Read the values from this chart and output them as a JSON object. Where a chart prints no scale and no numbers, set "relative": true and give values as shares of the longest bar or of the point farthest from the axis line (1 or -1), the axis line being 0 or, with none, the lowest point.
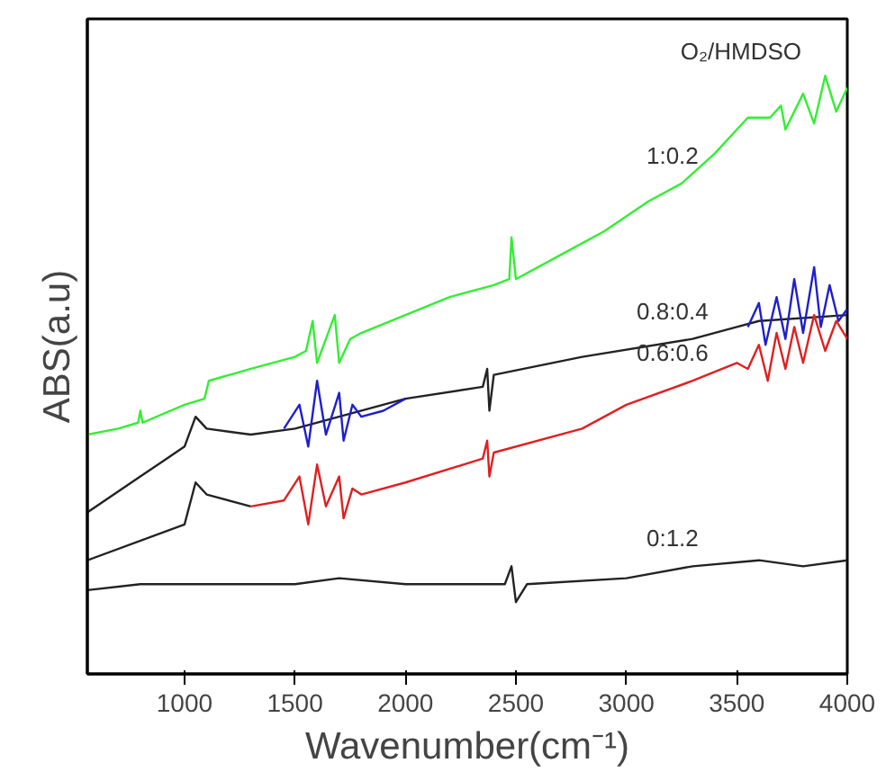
{
  "chart_data": {
    "type": "line",
    "relative": true,
    "xlabel": "Wavenumber(cm⁻¹)",
    "ylabel": "ABS(a.u)",
    "xlim": [
      560,
      4000
    ],
    "xticks": [
      1000,
      1500,
      2000,
      2500,
      3000,
      3500,
      4000
    ],
    "grid": false,
    "legend": false,
    "marker": "none",
    "line_style": "solid",
    "tick_labels": "x",
    "series": [
      {
        "name": "1:0.2",
        "color": "#33ee33",
        "x": [
          560,
          700,
          790,
          800,
          810,
          1000,
          1090,
          1110,
          1300,
          1500,
          1550,
          1580,
          1600,
          1650,
          1680,
          1700,
          1750,
          1800,
          2000,
          2200,
          2400,
          2470,
          2480,
          2500,
          2700,
          2900,
          3100,
          3250,
          3400,
          3500,
          3550,
          3650,
          3700,
          3720,
          3800,
          3850,
          3900,
          3950,
          4000
        ],
        "values": [
          0.4,
          0.41,
          0.42,
          0.44,
          0.42,
          0.45,
          0.46,
          0.49,
          0.51,
          0.53,
          0.54,
          0.59,
          0.52,
          0.57,
          0.6,
          0.52,
          0.56,
          0.57,
          0.6,
          0.63,
          0.65,
          0.66,
          0.73,
          0.66,
          0.7,
          0.74,
          0.79,
          0.82,
          0.87,
          0.91,
          0.93,
          0.93,
          0.95,
          0.91,
          0.97,
          0.92,
          1.0,
          0.94,
          0.98
        ]
      },
      {
        "name": "0.8:0.4",
        "color": "#222222",
        "x": [
          560,
          800,
          1000,
          1050,
          1100,
          1300,
          1500,
          2000,
          2350,
          2370,
          2380,
          2400,
          2800,
          3300,
          3500,
          3600,
          4000
        ],
        "values": [
          0.27,
          0.33,
          0.38,
          0.43,
          0.41,
          0.4,
          0.41,
          0.46,
          0.48,
          0.51,
          0.44,
          0.5,
          0.53,
          0.56,
          0.58,
          0.59,
          0.6
        ]
      },
      {
        "color": "#1f1fcc",
        "x": [
          1450,
          1520,
          1560,
          1600,
          1640,
          1700,
          1720,
          1760,
          1800,
          1900,
          2000,
          2700,
          3550,
          3600,
          3630,
          3680,
          3720,
          3760,
          3800,
          3850,
          3880,
          3920,
          3960,
          4000
        ],
        "values": [
          0.41,
          0.45,
          0.38,
          0.49,
          0.4,
          0.47,
          0.39,
          0.45,
          0.43,
          0.44,
          0.46,
          null,
          0.58,
          0.62,
          0.55,
          0.63,
          0.56,
          0.66,
          0.57,
          0.68,
          0.58,
          0.65,
          0.59,
          0.61
        ]
      },
      {
        "color": "#222222",
        "x": [
          560,
          1000,
          1050,
          1100,
          1300
        ],
        "values": [
          0.19,
          0.25,
          0.32,
          0.3,
          0.28
        ]
      },
      {
        "name": "0.6:0.6",
        "color": "#e02020",
        "x": [
          1300,
          1450,
          1520,
          1560,
          1600,
          1640,
          1700,
          1720,
          1760,
          1800,
          2000,
          2350,
          2370,
          2380,
          2400,
          2800,
          3000,
          3300,
          3500,
          3550,
          3600,
          3640,
          3680,
          3720,
          3760,
          3800,
          3850,
          3900,
          3950,
          4000
        ],
        "values": [
          0.28,
          0.29,
          0.33,
          0.25,
          0.35,
          0.28,
          0.33,
          0.26,
          0.31,
          0.3,
          0.32,
          0.36,
          0.39,
          0.33,
          0.37,
          0.41,
          0.45,
          0.49,
          0.52,
          0.51,
          0.55,
          0.49,
          0.57,
          0.51,
          0.58,
          0.52,
          0.6,
          0.54,
          0.59,
          0.56
        ]
      },
      {
        "name": "0:1.2",
        "color": "#222222",
        "x": [
          560,
          800,
          1500,
          1700,
          2000,
          2450,
          2480,
          2500,
          2550,
          3000,
          3300,
          3600,
          3800,
          4000
        ],
        "values": [
          0.14,
          0.15,
          0.15,
          0.16,
          0.15,
          0.15,
          0.18,
          0.12,
          0.15,
          0.16,
          0.18,
          0.19,
          0.18,
          0.19
        ]
      }
    ],
    "annotations": [
      "O₂/HMDSO"
    ]
  }
}
